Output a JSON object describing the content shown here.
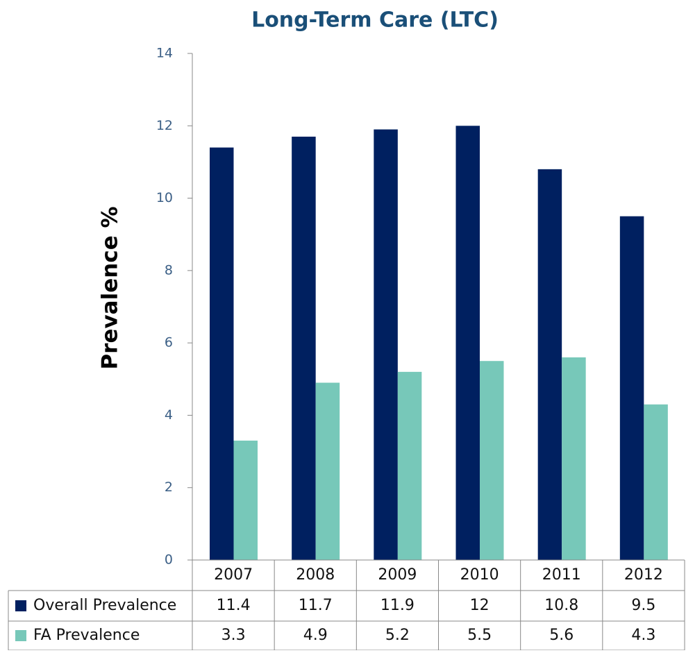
{
  "chart_data": {
    "type": "bar",
    "title": "Long-Term Care (LTC)",
    "y_label": "Prevalence %",
    "categories": [
      "2007",
      "2008",
      "2009",
      "2010",
      "2011",
      "2012"
    ],
    "series": [
      {
        "name": "Overall Prevalence",
        "color": "#002060",
        "values": [
          11.4,
          11.7,
          11.9,
          12,
          10.8,
          9.5
        ]
      },
      {
        "name": "FA Prevalence",
        "color": "#77c8b9",
        "values": [
          3.3,
          4.9,
          5.2,
          5.5,
          5.6,
          4.3
        ]
      }
    ],
    "ylim": [
      0,
      14
    ],
    "yticks": [
      0,
      2,
      4,
      6,
      8,
      10,
      12,
      14
    ],
    "grid": false
  }
}
